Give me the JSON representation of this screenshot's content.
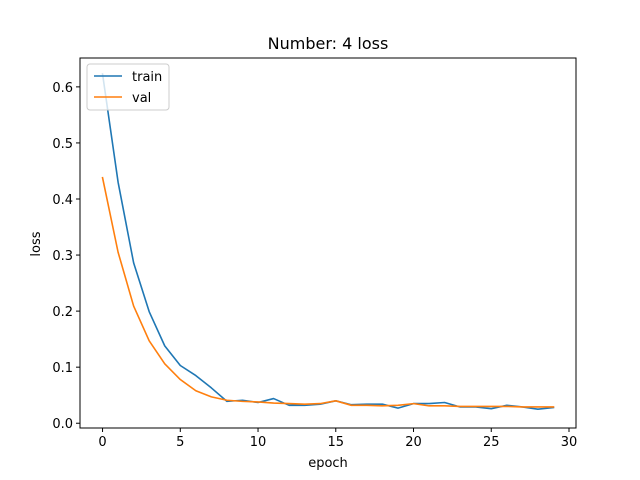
{
  "chart_data": {
    "type": "line",
    "title": "Number: 4 loss",
    "xlabel": "epoch",
    "ylabel": "loss",
    "xlim": [
      -1.45,
      30.45
    ],
    "ylim": [
      -0.0085,
      0.6515
    ],
    "xticks": [
      0,
      5,
      10,
      15,
      20,
      25,
      30
    ],
    "yticks": [
      0.0,
      0.1,
      0.2,
      0.3,
      0.4,
      0.5,
      0.6
    ],
    "ytick_labels": [
      "0.0",
      "0.1",
      "0.2",
      "0.3",
      "0.4",
      "0.5",
      "0.6"
    ],
    "grid": false,
    "legend_position": "top-left",
    "x": [
      0,
      1,
      2,
      3,
      4,
      5,
      6,
      7,
      8,
      9,
      10,
      11,
      12,
      13,
      14,
      15,
      16,
      17,
      18,
      19,
      20,
      21,
      22,
      23,
      24,
      25,
      26,
      27,
      28,
      29
    ],
    "series": [
      {
        "name": "train",
        "color": "#1f77b4",
        "values": [
          0.623,
          0.43,
          0.286,
          0.199,
          0.138,
          0.103,
          0.085,
          0.063,
          0.039,
          0.041,
          0.037,
          0.044,
          0.032,
          0.032,
          0.034,
          0.04,
          0.033,
          0.034,
          0.034,
          0.027,
          0.035,
          0.035,
          0.037,
          0.029,
          0.029,
          0.026,
          0.032,
          0.029,
          0.025,
          0.028
        ]
      },
      {
        "name": "val",
        "color": "#ff7f0e",
        "values": [
          0.438,
          0.305,
          0.209,
          0.147,
          0.106,
          0.078,
          0.058,
          0.047,
          0.041,
          0.039,
          0.038,
          0.036,
          0.035,
          0.034,
          0.035,
          0.04,
          0.032,
          0.032,
          0.031,
          0.032,
          0.035,
          0.031,
          0.031,
          0.03,
          0.03,
          0.03,
          0.03,
          0.029,
          0.029,
          0.029
        ]
      }
    ]
  }
}
